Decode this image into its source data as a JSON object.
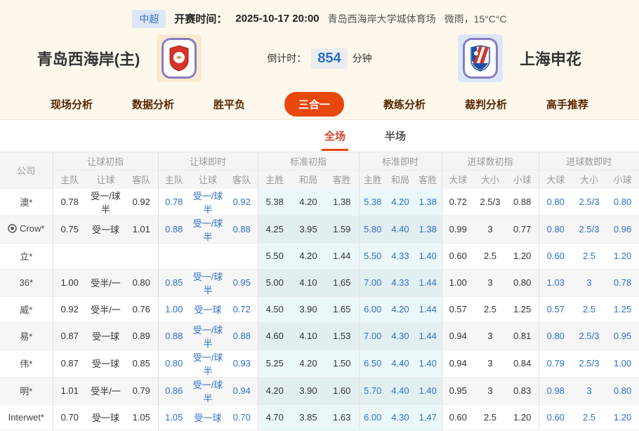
{
  "top_bar": {
    "league": "中超",
    "kickoff_label": "开赛时间：",
    "kickoff_time": "2025-10-17 20:00",
    "venue": "青岛西海岸大学城体育场",
    "weather": "微雨，15°C°C"
  },
  "header": {
    "home_team": "青岛西海岸(主)",
    "away_team": "上海申花",
    "countdown_label": "倒计时：",
    "countdown_value": "854",
    "countdown_unit": "分钟"
  },
  "nav": {
    "items": [
      {
        "key": "tab-live-analysis",
        "label": "现场分析",
        "active": false
      },
      {
        "key": "tab-data-analysis",
        "label": "数据分析",
        "active": false
      },
      {
        "key": "tab-win-draw-lose",
        "label": "胜平负",
        "active": false
      },
      {
        "key": "tab-three-in-one",
        "label": "三合一",
        "active": true
      },
      {
        "key": "tab-coach-analysis",
        "label": "教练分析",
        "active": false
      },
      {
        "key": "tab-referee-analysis",
        "label": "裁判分析",
        "active": false
      },
      {
        "key": "tab-expert-picks",
        "label": "高手推荐",
        "active": false
      }
    ]
  },
  "subtabs": {
    "items": [
      {
        "key": "subtab-full-match",
        "label": "全场",
        "active": true
      },
      {
        "key": "subtab-half-match",
        "label": "半场",
        "active": false
      }
    ]
  },
  "table": {
    "company_header": "公司",
    "groups": [
      {
        "label": "让球初指",
        "cols": [
          "主队",
          "让球",
          "客队"
        ]
      },
      {
        "label": "让球即时",
        "cols": [
          "主队",
          "让球",
          "客队"
        ]
      },
      {
        "label": "标准初指",
        "cols": [
          "主胜",
          "和局",
          "客胜"
        ]
      },
      {
        "label": "标准即时",
        "cols": [
          "主胜",
          "和局",
          "客胜"
        ]
      },
      {
        "label": "进球数初指",
        "cols": [
          "大球",
          "大小",
          "小球"
        ]
      },
      {
        "label": "进球数即时",
        "cols": [
          "大球",
          "大小",
          "小球"
        ]
      }
    ],
    "rows": [
      {
        "company": "澳*",
        "icon": null,
        "handicap_initial": [
          "0.78",
          "受一/球半",
          "0.92"
        ],
        "handicap_live": [
          "0.78",
          "受一/球半",
          "0.92"
        ],
        "std_initial": [
          "5.38",
          "4.20",
          "1.38"
        ],
        "std_live": [
          "5.38",
          "4.20",
          "1.38"
        ],
        "goals_initial": [
          "0.72",
          "2.5/3",
          "0.88"
        ],
        "goals_live": [
          "0.80",
          "2.5/3",
          "0.80"
        ]
      },
      {
        "company": "Crow*",
        "icon": "soccer-ball",
        "handicap_initial": [
          "0.75",
          "受一球",
          "1.01"
        ],
        "handicap_live": [
          "0.88",
          "受一/球半",
          "0.88"
        ],
        "std_initial": [
          "4.25",
          "3.95",
          "1.59"
        ],
        "std_live": [
          "5.80",
          "4.40",
          "1.38"
        ],
        "goals_initial": [
          "0.99",
          "3",
          "0.77"
        ],
        "goals_live": [
          "0.80",
          "2.5/3",
          "0.96"
        ]
      },
      {
        "company": "立*",
        "icon": null,
        "handicap_initial": [
          "",
          "",
          ""
        ],
        "handicap_live": [
          "",
          "",
          ""
        ],
        "std_initial": [
          "5.50",
          "4.20",
          "1.44"
        ],
        "std_live": [
          "5.50",
          "4.33",
          "1.40"
        ],
        "goals_initial": [
          "0.60",
          "2.5",
          "1.20"
        ],
        "goals_live": [
          "0.60",
          "2.5",
          "1.20"
        ]
      },
      {
        "company": "36*",
        "icon": null,
        "handicap_initial": [
          "1.00",
          "受半/一",
          "0.80"
        ],
        "handicap_live": [
          "0.85",
          "受一/球半",
          "0.95"
        ],
        "std_initial": [
          "5.00",
          "4.10",
          "1.65"
        ],
        "std_live": [
          "7.00",
          "4.33",
          "1.44"
        ],
        "goals_initial": [
          "1.00",
          "3",
          "0.80"
        ],
        "goals_live": [
          "1.03",
          "3",
          "0.78"
        ]
      },
      {
        "company": "威*",
        "icon": null,
        "handicap_initial": [
          "0.92",
          "受半/一",
          "0.76"
        ],
        "handicap_live": [
          "1.00",
          "受一球",
          "0.72"
        ],
        "std_initial": [
          "4.50",
          "3.90",
          "1.65"
        ],
        "std_live": [
          "6.00",
          "4.20",
          "1.44"
        ],
        "goals_initial": [
          "0.57",
          "2.5",
          "1.25"
        ],
        "goals_live": [
          "0.57",
          "2.5",
          "1.25"
        ]
      },
      {
        "company": "易*",
        "icon": null,
        "handicap_initial": [
          "0.87",
          "受一球",
          "0.89"
        ],
        "handicap_live": [
          "0.88",
          "受一/球半",
          "0.88"
        ],
        "std_initial": [
          "4.60",
          "4.10",
          "1.53"
        ],
        "std_live": [
          "7.00",
          "4.30",
          "1.44"
        ],
        "goals_initial": [
          "0.94",
          "3",
          "0.81"
        ],
        "goals_live": [
          "0.80",
          "2.5/3",
          "0.95"
        ]
      },
      {
        "company": "伟*",
        "icon": null,
        "handicap_initial": [
          "0.87",
          "受一球",
          "0.85"
        ],
        "handicap_live": [
          "0.80",
          "受一/球半",
          "0.93"
        ],
        "std_initial": [
          "5.25",
          "4.20",
          "1.50"
        ],
        "std_live": [
          "6.50",
          "4.40",
          "1.40"
        ],
        "goals_initial": [
          "0.94",
          "3",
          "0.84"
        ],
        "goals_live": [
          "0.79",
          "2.5/3",
          "1.00"
        ]
      },
      {
        "company": "明*",
        "icon": null,
        "handicap_initial": [
          "1.01",
          "受半/一",
          "0.79"
        ],
        "handicap_live": [
          "0.86",
          "受一/球半",
          "0.94"
        ],
        "std_initial": [
          "4.20",
          "3.90",
          "1.60"
        ],
        "std_live": [
          "5.70",
          "4.40",
          "1.40"
        ],
        "goals_initial": [
          "0.95",
          "3",
          "0.83"
        ],
        "goals_live": [
          "0.98",
          "3",
          "0.80"
        ]
      },
      {
        "company": "Interwet*",
        "icon": null,
        "handicap_initial": [
          "0.70",
          "受一球",
          "1.05"
        ],
        "handicap_live": [
          "1.05",
          "受一球",
          "0.70"
        ],
        "std_initial": [
          "4.70",
          "3.85",
          "1.63"
        ],
        "std_live": [
          "6.00",
          "4.30",
          "1.47"
        ],
        "goals_initial": [
          "0.60",
          "2.5",
          "1.20"
        ],
        "goals_live": [
          "0.60",
          "2.5",
          "1.20"
        ]
      }
    ]
  },
  "colors": {
    "accent_orange": "#e8470e",
    "live_odds_blue": "#2e6ec9",
    "std_column_tint": "#e9f6f8",
    "cream_background": "#fdf8eb",
    "league_badge_blue": "#3a6fc4"
  }
}
